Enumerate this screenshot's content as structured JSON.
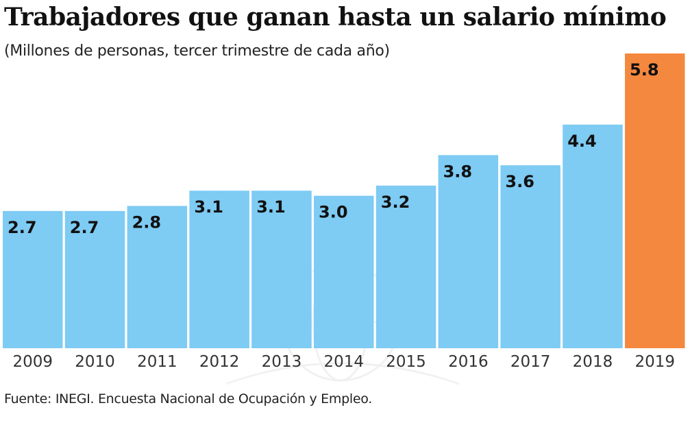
{
  "chart_data": {
    "type": "bar",
    "title": "Trabajadores que ganan hasta un salario mínimo",
    "subtitle": "(Millones de personas, tercer trimestre de cada año)",
    "categories": [
      "2009",
      "2010",
      "2011",
      "2012",
      "2013",
      "2014",
      "2015",
      "2016",
      "2017",
      "2018",
      "2019"
    ],
    "values": [
      2.7,
      2.7,
      2.8,
      3.1,
      3.1,
      3.0,
      3.2,
      3.8,
      3.6,
      4.4,
      5.8
    ],
    "data_labels": [
      "2.7",
      "2.7",
      "2.8",
      "3.1",
      "3.1",
      "3.0",
      "3.2",
      "3.8",
      "3.6",
      "4.4",
      "5.8"
    ],
    "ylim": [
      0,
      5.8
    ],
    "grid": false,
    "colors": {
      "default": "#7ecbf3",
      "highlight": "#f4883f"
    },
    "highlight_category": "2019",
    "source": "Fuente: INEGI. Encuesta Nacional de Ocupación y Empleo."
  }
}
